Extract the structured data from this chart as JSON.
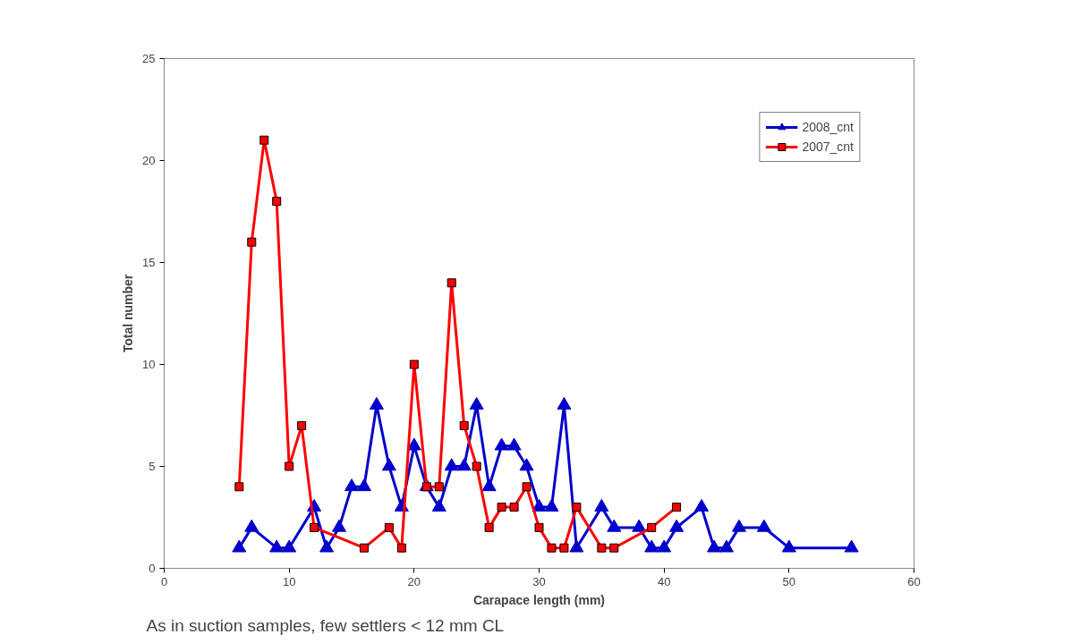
{
  "chart_data": {
    "type": "line",
    "xlabel": "Carapace length (mm)",
    "ylabel": "Total number",
    "annotations": [
      "As in suction samples, few settlers < 12 mm CL"
    ],
    "xlim": [
      0,
      60
    ],
    "xticks": [
      0,
      10,
      20,
      30,
      40,
      50,
      60
    ],
    "ylim": [
      0,
      25
    ],
    "yticks": [
      0,
      5,
      10,
      15,
      20,
      25
    ],
    "grid": false,
    "legend": "top right",
    "line_style": "solid",
    "series": [
      {
        "name": "2008_cnt",
        "color": "#0000cc",
        "marker": "triangle",
        "x": [
          6,
          7,
          9,
          10,
          12,
          13,
          14,
          15,
          16,
          17,
          18,
          19,
          20,
          21,
          22,
          23,
          24,
          25,
          26,
          27,
          28,
          29,
          30,
          31,
          32,
          33,
          35,
          36,
          38,
          39,
          40,
          41,
          43,
          44,
          45,
          46,
          48,
          50,
          55
        ],
        "values": [
          1,
          2,
          1,
          1,
          3,
          1,
          2,
          4,
          4,
          8,
          5,
          3,
          6,
          4,
          3,
          5,
          5,
          8,
          4,
          6,
          6,
          5,
          3,
          3,
          8,
          1,
          3,
          2,
          2,
          1,
          1,
          2,
          3,
          1,
          1,
          2,
          2,
          1,
          1
        ]
      },
      {
        "name": "2007_cnt",
        "color": "#ff0000",
        "marker": "square",
        "x": [
          6,
          7,
          8,
          9,
          10,
          11,
          12,
          16,
          18,
          19,
          20,
          21,
          22,
          23,
          24,
          25,
          26,
          27,
          28,
          29,
          30,
          31,
          32,
          33,
          35,
          36,
          39,
          41
        ],
        "values": [
          4,
          16,
          21,
          18,
          5,
          7,
          2,
          1,
          2,
          1,
          10,
          4,
          4,
          14,
          7,
          5,
          2,
          3,
          3,
          4,
          2,
          1,
          1,
          3,
          1,
          1,
          2,
          3
        ]
      }
    ]
  }
}
